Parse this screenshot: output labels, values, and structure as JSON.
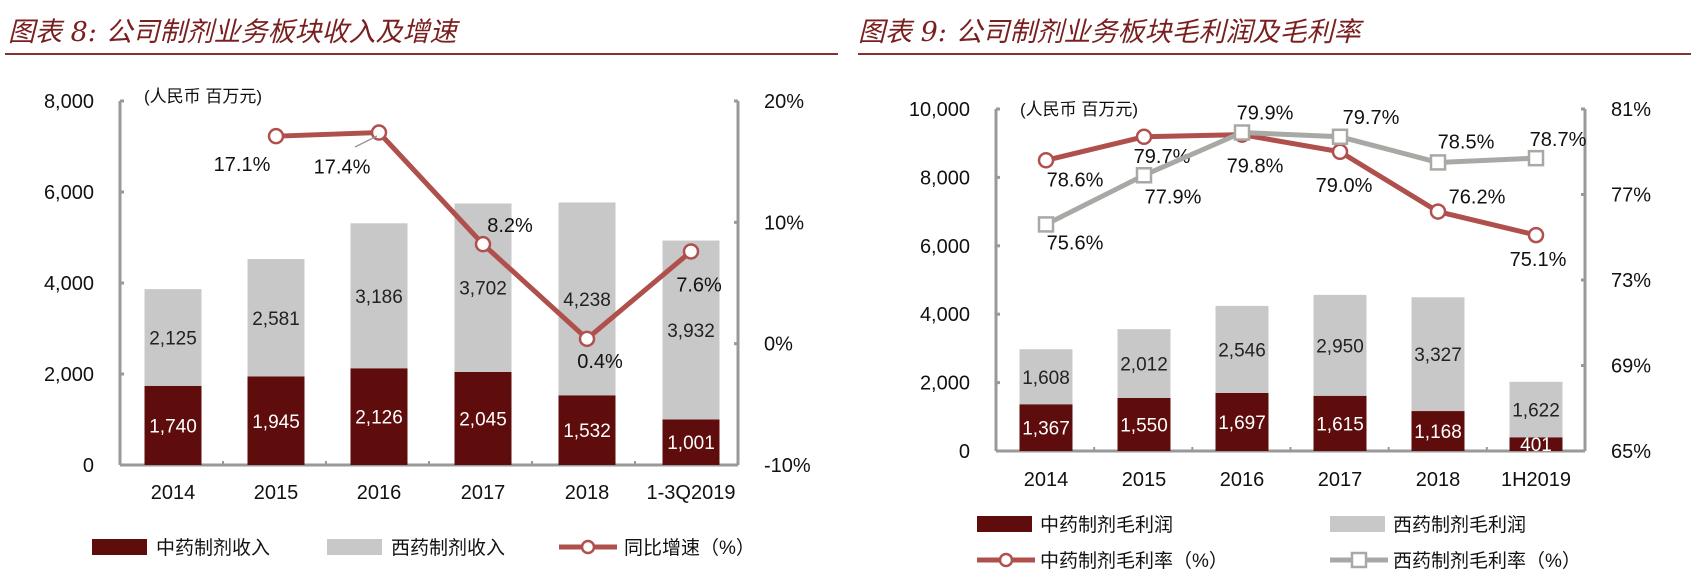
{
  "charts_meta": {
    "colors": {
      "dark_bar": "#5e0c0c",
      "grey_bar": "#c8c8c8",
      "red_line": "#b0504d",
      "grey_line": "#a8a9a4",
      "title": "#7a1f1f"
    }
  },
  "chart_data": [
    {
      "type": "bar",
      "stacked": true,
      "title": "图表 8:  公司制剂业务板块收入及增速",
      "unit_label": "(人民币 百万元)",
      "categories": [
        "2014",
        "2015",
        "2016",
        "2017",
        "2018",
        "1-3Q2019"
      ],
      "y_left": {
        "range": [
          0,
          8000
        ],
        "ticks": [
          "0",
          "2,000",
          "4,000",
          "6,000",
          "8,000"
        ]
      },
      "y_right": {
        "range": [
          -10,
          20
        ],
        "ticks": [
          "-10%",
          "0%",
          "10%",
          "20%"
        ]
      },
      "series": [
        {
          "name": "中药制剂收入",
          "kind": "bar",
          "values": [
            1740,
            1945,
            2126,
            2045,
            1532,
            1001
          ],
          "labels": [
            "1,740",
            "1,945",
            "2,126",
            "2,045",
            "1,532",
            "1,001"
          ]
        },
        {
          "name": "西药制剂收入",
          "kind": "bar",
          "values": [
            2125,
            2581,
            3186,
            3702,
            4238,
            3932
          ],
          "labels": [
            "2,125",
            "2,581",
            "3,186",
            "3,702",
            "4,238",
            "3,932"
          ]
        },
        {
          "name": "同比增速（%）",
          "kind": "line",
          "axis": "right",
          "values": [
            null,
            17.1,
            17.4,
            8.2,
            0.4,
            7.6
          ],
          "labels": [
            null,
            "17.1%",
            "17.4%",
            "8.2%",
            "0.4%",
            "7.6%"
          ]
        }
      ],
      "legend": "bottom",
      "grid": false
    },
    {
      "type": "bar",
      "stacked": true,
      "title": "图表 9:  公司制剂业务板块毛利润及毛利率",
      "unit_label": "(人民币 百万元)",
      "categories": [
        "2014",
        "2015",
        "2016",
        "2017",
        "2018",
        "1H2019"
      ],
      "y_left": {
        "range": [
          0,
          10000
        ],
        "ticks": [
          "0",
          "2,000",
          "4,000",
          "6,000",
          "8,000",
          "10,000"
        ]
      },
      "y_right": {
        "range": [
          65,
          81
        ],
        "ticks": [
          "65%",
          "69%",
          "73%",
          "77%",
          "81%"
        ]
      },
      "series": [
        {
          "name": "中药制剂毛利润",
          "kind": "bar",
          "values": [
            1367,
            1550,
            1697,
            1615,
            1168,
            401
          ],
          "labels": [
            "1,367",
            "1,550",
            "1,697",
            "1,615",
            "1,168",
            "401"
          ]
        },
        {
          "name": "西药制剂毛利润",
          "kind": "bar",
          "values": [
            1608,
            2012,
            2546,
            2950,
            3327,
            1622
          ],
          "labels": [
            "1,608",
            "2,012",
            "2,546",
            "2,950",
            "3,327",
            "1,622"
          ]
        },
        {
          "name": "中药制剂毛利率（%）",
          "kind": "line",
          "axis": "right",
          "marker": "circle",
          "values": [
            78.6,
            79.7,
            79.8,
            79.0,
            76.2,
            75.1
          ],
          "labels": [
            "78.6%",
            "79.7%",
            "79.8%",
            "79.0%",
            "76.2%",
            "75.1%"
          ]
        },
        {
          "name": "西药制剂毛利率（%）",
          "kind": "line",
          "axis": "right",
          "marker": "square",
          "values": [
            75.6,
            77.9,
            79.9,
            79.7,
            78.5,
            78.7
          ],
          "labels": [
            "75.6%",
            "77.9%",
            "79.9%",
            "79.7%",
            "78.5%",
            "78.7%"
          ]
        }
      ],
      "legend": "bottom",
      "grid": false
    }
  ]
}
